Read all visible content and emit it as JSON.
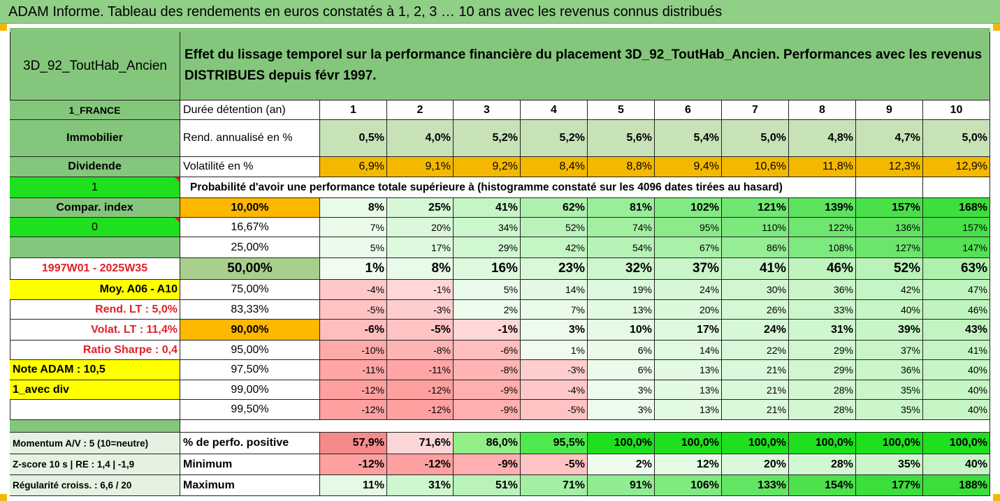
{
  "title": "ADAM Informe. Tableau des rendements en euros constatés à 1, 2, 3 … 10 ans avec les revenus connus distribués",
  "fund_name": "3D_92_ToutHab_Ancien",
  "description": "Effet du lissage temporel sur la performance financière du placement 3D_92_ToutHab_Ancien. Performances avec les revenus DISTRIBUES depuis févr 1997.",
  "left_labels": {
    "country": "1_FRANCE",
    "category": "Immobilier",
    "income_type": "Dividende",
    "flag1": "1",
    "compar_index": "Compar. index",
    "flag0": "0",
    "period": "1997W01 - 2025W35",
    "moy": "Moy. A06 - A10",
    "rend_lt": "Rend. LT :   5,0%",
    "volat_lt": "Volat. LT :   11,4%",
    "sharpe": "Ratio Sharpe :   0,4",
    "note": "Note ADAM : 10,5",
    "avec_div": "1_avec div",
    "momentum": "Momentum A/V : 5 (10=neutre)",
    "zscore": "Z-score 10 s  |  RE : 1,4  |  -1,9",
    "regularite": "Régularité croiss. : 6,6 / 20"
  },
  "header": {
    "duration_label": "Durée détention (an)",
    "years": [
      "1",
      "2",
      "3",
      "4",
      "5",
      "6",
      "7",
      "8",
      "9",
      "10"
    ]
  },
  "rend": {
    "label": "Rend. annualisé en %",
    "values": [
      "0,5%",
      "4,0%",
      "5,2%",
      "5,2%",
      "5,6%",
      "5,4%",
      "5,0%",
      "4,8%",
      "4,7%",
      "5,0%"
    ]
  },
  "volat": {
    "label": "Volatilité en %",
    "values": [
      "6,9%",
      "9,1%",
      "9,2%",
      "8,4%",
      "8,8%",
      "9,4%",
      "10,6%",
      "11,8%",
      "12,3%",
      "12,9%"
    ]
  },
  "proba_label": "Probabilité d'avoir une performance totale supérieure à (histogramme constaté sur les 4096 dates tirées au hasard)",
  "proba_rows": [
    {
      "p": "10,00%",
      "values": [
        "8%",
        "25%",
        "41%",
        "62%",
        "81%",
        "102%",
        "121%",
        "139%",
        "157%",
        "168%"
      ]
    },
    {
      "p": "16,67%",
      "values": [
        "7%",
        "20%",
        "34%",
        "52%",
        "74%",
        "95%",
        "110%",
        "122%",
        "136%",
        "157%"
      ]
    },
    {
      "p": "25,00%",
      "values": [
        "5%",
        "17%",
        "29%",
        "42%",
        "54%",
        "67%",
        "86%",
        "108%",
        "127%",
        "147%"
      ]
    },
    {
      "p": "50,00%",
      "values": [
        "1%",
        "8%",
        "16%",
        "23%",
        "32%",
        "37%",
        "41%",
        "46%",
        "52%",
        "63%"
      ]
    },
    {
      "p": "75,00%",
      "values": [
        "-4%",
        "-1%",
        "5%",
        "14%",
        "19%",
        "24%",
        "30%",
        "36%",
        "42%",
        "47%"
      ]
    },
    {
      "p": "83,33%",
      "values": [
        "-5%",
        "-3%",
        "2%",
        "7%",
        "13%",
        "20%",
        "26%",
        "33%",
        "40%",
        "46%"
      ]
    },
    {
      "p": "90,00%",
      "values": [
        "-6%",
        "-5%",
        "-1%",
        "3%",
        "10%",
        "17%",
        "24%",
        "31%",
        "39%",
        "43%"
      ]
    },
    {
      "p": "95,00%",
      "values": [
        "-10%",
        "-8%",
        "-6%",
        "1%",
        "6%",
        "14%",
        "22%",
        "29%",
        "37%",
        "41%"
      ]
    },
    {
      "p": "97,50%",
      "values": [
        "-11%",
        "-11%",
        "-8%",
        "-3%",
        "6%",
        "13%",
        "21%",
        "29%",
        "36%",
        "40%"
      ]
    },
    {
      "p": "99,00%",
      "values": [
        "-12%",
        "-12%",
        "-9%",
        "-4%",
        "3%",
        "13%",
        "21%",
        "28%",
        "35%",
        "40%"
      ]
    },
    {
      "p": "99,50%",
      "values": [
        "-12%",
        "-12%",
        "-9%",
        "-5%",
        "3%",
        "13%",
        "21%",
        "28%",
        "35%",
        "40%"
      ]
    }
  ],
  "summary_rows": [
    {
      "label": "% de perfo. positive",
      "values": [
        "57,9%",
        "71,6%",
        "86,0%",
        "95,5%",
        "100,0%",
        "100,0%",
        "100,0%",
        "100,0%",
        "100,0%",
        "100,0%"
      ]
    },
    {
      "label": "Minimum",
      "values": [
        "-12%",
        "-12%",
        "-9%",
        "-5%",
        "2%",
        "12%",
        "20%",
        "28%",
        "35%",
        "40%"
      ]
    },
    {
      "label": "Maximum",
      "values": [
        "11%",
        "31%",
        "51%",
        "71%",
        "91%",
        "106%",
        "133%",
        "154%",
        "177%",
        "188%"
      ]
    }
  ],
  "colors": {
    "banner_green": "#8fcf86",
    "label_green": "#84c77c",
    "bright_green": "#1fe01f",
    "orange": "#f5b800",
    "yellow": "#ffff00",
    "rend_green": "#c8e2b8",
    "sel_green": "#a9cf8c",
    "red_text": "#e0202a"
  }
}
